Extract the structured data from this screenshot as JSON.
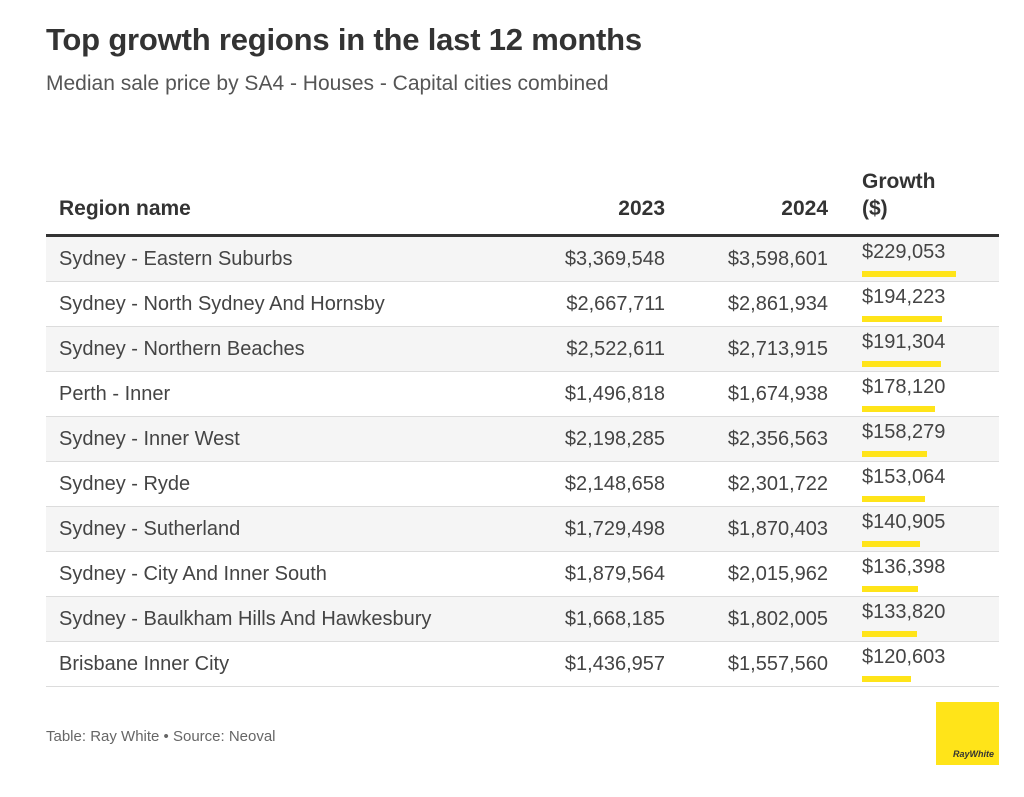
{
  "chart_data": {
    "type": "table",
    "title": "Top growth regions in the last 12 months",
    "subtitle": "Median sale price by SA4 - Houses - Capital cities combined",
    "columns": [
      "Region name",
      "2023",
      "2024",
      "Growth ($)"
    ],
    "rows": [
      {
        "region": "Sydney - Eastern Suburbs",
        "y2023": "$3,369,548",
        "y2024": "$3,598,601",
        "growth": "$229,053",
        "growth_value": 229053
      },
      {
        "region": "Sydney - North Sydney And Hornsby",
        "y2023": "$2,667,711",
        "y2024": "$2,861,934",
        "growth": "$194,223",
        "growth_value": 194223
      },
      {
        "region": "Sydney - Northern Beaches",
        "y2023": "$2,522,611",
        "y2024": "$2,713,915",
        "growth": "$191,304",
        "growth_value": 191304
      },
      {
        "region": "Perth - Inner",
        "y2023": "$1,496,818",
        "y2024": "$1,674,938",
        "growth": "$178,120",
        "growth_value": 178120
      },
      {
        "region": "Sydney - Inner West",
        "y2023": "$2,198,285",
        "y2024": "$2,356,563",
        "growth": "$158,279",
        "growth_value": 158279
      },
      {
        "region": "Sydney - Ryde",
        "y2023": "$2,148,658",
        "y2024": "$2,301,722",
        "growth": "$153,064",
        "growth_value": 153064
      },
      {
        "region": "Sydney - Sutherland",
        "y2023": "$1,729,498",
        "y2024": "$1,870,403",
        "growth": "$140,905",
        "growth_value": 140905
      },
      {
        "region": "Sydney - City And Inner South",
        "y2023": "$1,879,564",
        "y2024": "$2,015,962",
        "growth": "$136,398",
        "growth_value": 136398
      },
      {
        "region": "Sydney - Baulkham Hills And Hawkesbury",
        "y2023": "$1,668,185",
        "y2024": "$1,802,005",
        "growth": "$133,820",
        "growth_value": 133820
      },
      {
        "region": "Brisbane Inner City",
        "y2023": "$1,436,957",
        "y2024": "$1,557,560",
        "growth": "$120,603",
        "growth_value": 120603
      }
    ],
    "bar_color": "#ffe419",
    "row_stripe_color": "#f5f5f5"
  },
  "footer": "Table: Ray White • Source: Neoval",
  "logo": {
    "text": "RayWhite",
    "color": "#ffe419"
  }
}
